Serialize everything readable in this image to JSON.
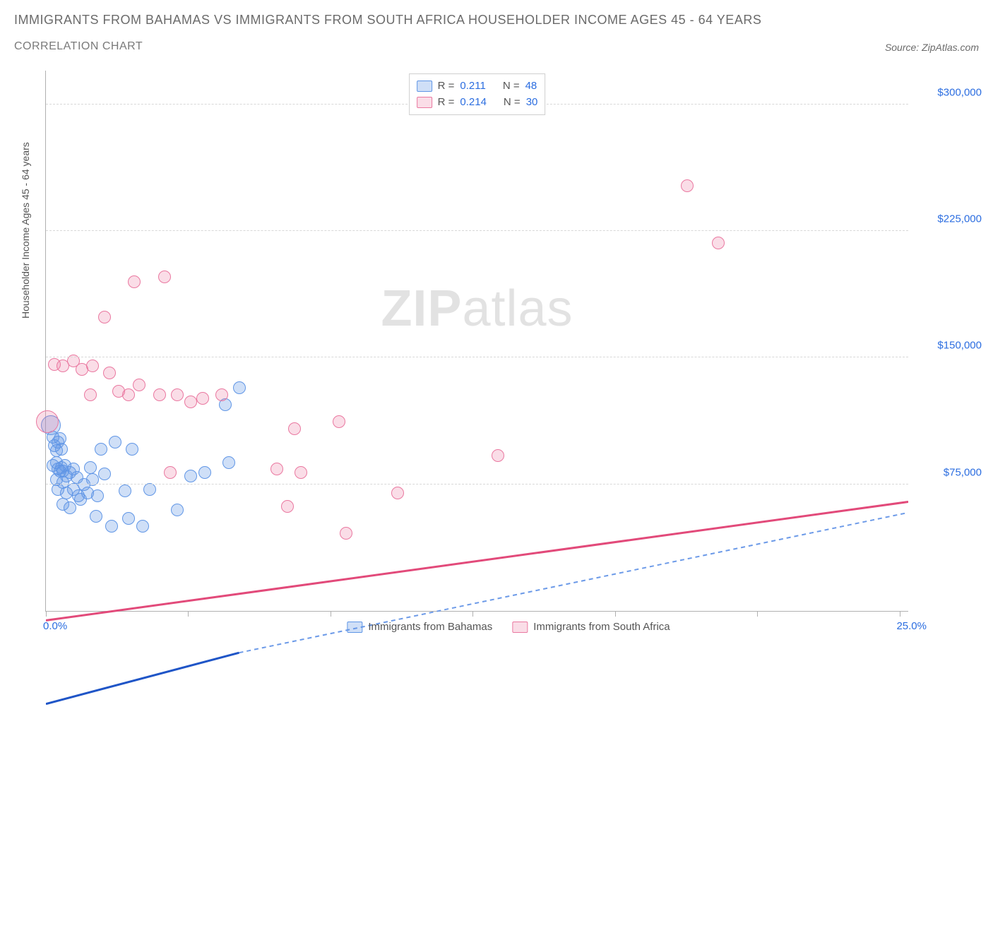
{
  "header": {
    "title": "IMMIGRANTS FROM BAHAMAS VS IMMIGRANTS FROM SOUTH AFRICA HOUSEHOLDER INCOME AGES 45 - 64 YEARS",
    "subtitle": "CORRELATION CHART",
    "source": "Source: ZipAtlas.com"
  },
  "chart": {
    "type": "scatter",
    "y_axis_title": "Householder Income Ages 45 - 64 years",
    "xlim": [
      0,
      25
    ],
    "ylim": [
      0,
      320000
    ],
    "x_tick_positions_pct": [
      0,
      16.5,
      33,
      49.5,
      66,
      82.5,
      99
    ],
    "x_label_min": "0.0%",
    "x_label_max": "25.0%",
    "y_ticks": [
      75000,
      150000,
      225000,
      300000
    ],
    "y_tick_labels": [
      "$75,000",
      "$150,000",
      "$225,000",
      "$300,000"
    ],
    "grid_color": "#d8d8d8",
    "background_color": "#ffffff",
    "axis_color": "#b0b0b0",
    "tick_label_color": "#2b6de0",
    "tick_label_fontsize": 15,
    "y_title_fontsize": 14,
    "title_color": "#6b6b6b",
    "title_fontsize": 18,
    "subtitle_fontsize": 16,
    "watermark_text_bold": "ZIP",
    "watermark_text_rest": "atlas",
    "watermark_color": "#e2e2e2",
    "watermark_fontsize": 72,
    "series": [
      {
        "name": "Immigrants from Bahamas",
        "fill_color": "rgba(96,150,230,0.30)",
        "stroke_color": "#6096e6",
        "default_radius": 9,
        "trend_color": "#1f55c7",
        "trend_dash_color": "#6c9ae8",
        "trend_width": 3,
        "trend_solid": {
          "x1": 0,
          "y1": 85000,
          "x2": 5.6,
          "y2": 104000
        },
        "trend_dashed": {
          "x1": 5.6,
          "y1": 104000,
          "x2": 25,
          "y2": 156000
        },
        "R": "0.211",
        "N": "48",
        "points": [
          {
            "x": 0.15,
            "y": 110000,
            "r": 14
          },
          {
            "x": 0.2,
            "y": 103000
          },
          {
            "x": 0.25,
            "y": 98000
          },
          {
            "x": 0.3,
            "y": 95000
          },
          {
            "x": 0.35,
            "y": 100000
          },
          {
            "x": 0.4,
            "y": 102000
          },
          {
            "x": 0.45,
            "y": 96000
          },
          {
            "x": 0.2,
            "y": 86000
          },
          {
            "x": 0.3,
            "y": 88000
          },
          {
            "x": 0.35,
            "y": 84000
          },
          {
            "x": 0.4,
            "y": 83000
          },
          {
            "x": 0.45,
            "y": 85000
          },
          {
            "x": 0.5,
            "y": 83000
          },
          {
            "x": 0.55,
            "y": 86000
          },
          {
            "x": 0.3,
            "y": 78000
          },
          {
            "x": 0.5,
            "y": 76000
          },
          {
            "x": 0.6,
            "y": 80000
          },
          {
            "x": 0.7,
            "y": 82000
          },
          {
            "x": 0.8,
            "y": 84000
          },
          {
            "x": 0.9,
            "y": 79000
          },
          {
            "x": 0.35,
            "y": 72000
          },
          {
            "x": 0.6,
            "y": 70000
          },
          {
            "x": 0.8,
            "y": 72000
          },
          {
            "x": 0.95,
            "y": 68000
          },
          {
            "x": 0.5,
            "y": 63000
          },
          {
            "x": 0.7,
            "y": 61000
          },
          {
            "x": 1.0,
            "y": 66000
          },
          {
            "x": 1.1,
            "y": 75000
          },
          {
            "x": 1.2,
            "y": 70000
          },
          {
            "x": 1.3,
            "y": 85000
          },
          {
            "x": 1.35,
            "y": 78000
          },
          {
            "x": 1.45,
            "y": 56000
          },
          {
            "x": 1.5,
            "y": 68000
          },
          {
            "x": 1.6,
            "y": 96000
          },
          {
            "x": 1.7,
            "y": 81000
          },
          {
            "x": 1.9,
            "y": 50000
          },
          {
            "x": 2.0,
            "y": 100000
          },
          {
            "x": 2.3,
            "y": 71000
          },
          {
            "x": 2.4,
            "y": 55000
          },
          {
            "x": 2.5,
            "y": 96000
          },
          {
            "x": 2.8,
            "y": 50000
          },
          {
            "x": 3.0,
            "y": 72000
          },
          {
            "x": 3.8,
            "y": 60000
          },
          {
            "x": 4.2,
            "y": 80000
          },
          {
            "x": 4.6,
            "y": 82000
          },
          {
            "x": 5.2,
            "y": 122000
          },
          {
            "x": 5.3,
            "y": 88000
          },
          {
            "x": 5.6,
            "y": 132000
          }
        ]
      },
      {
        "name": "Immigrants from South Africa",
        "fill_color": "rgba(234,120,160,0.25)",
        "stroke_color": "#ea78a0",
        "default_radius": 9,
        "trend_color": "#e24a7a",
        "trend_width": 3,
        "trend_solid": {
          "x1": 0,
          "y1": 116000,
          "x2": 25,
          "y2": 160000
        },
        "R": "0.214",
        "N": "30",
        "points": [
          {
            "x": 0.05,
            "y": 112000,
            "r": 16
          },
          {
            "x": 0.25,
            "y": 146000
          },
          {
            "x": 0.5,
            "y": 145000
          },
          {
            "x": 0.8,
            "y": 148000
          },
          {
            "x": 1.05,
            "y": 143000
          },
          {
            "x": 1.3,
            "y": 128000
          },
          {
            "x": 1.35,
            "y": 145000
          },
          {
            "x": 1.85,
            "y": 141000
          },
          {
            "x": 2.1,
            "y": 130000
          },
          {
            "x": 2.4,
            "y": 128000
          },
          {
            "x": 2.7,
            "y": 134000
          },
          {
            "x": 3.3,
            "y": 128000
          },
          {
            "x": 3.6,
            "y": 82000
          },
          {
            "x": 3.8,
            "y": 128000
          },
          {
            "x": 4.2,
            "y": 124000
          },
          {
            "x": 4.55,
            "y": 126000
          },
          {
            "x": 2.55,
            "y": 195000
          },
          {
            "x": 3.45,
            "y": 198000
          },
          {
            "x": 1.7,
            "y": 174000
          },
          {
            "x": 5.1,
            "y": 128000
          },
          {
            "x": 6.7,
            "y": 84000
          },
          {
            "x": 7.0,
            "y": 62000
          },
          {
            "x": 7.2,
            "y": 108000
          },
          {
            "x": 7.4,
            "y": 82000
          },
          {
            "x": 8.5,
            "y": 112000
          },
          {
            "x": 8.7,
            "y": 46000
          },
          {
            "x": 10.2,
            "y": 70000
          },
          {
            "x": 13.1,
            "y": 92000
          },
          {
            "x": 18.6,
            "y": 252000
          },
          {
            "x": 19.5,
            "y": 218000
          }
        ]
      }
    ],
    "legend_bottom": [
      {
        "label": "Immigrants from Bahamas",
        "fill": "rgba(96,150,230,0.30)",
        "stroke": "#6096e6"
      },
      {
        "label": "Immigrants from South Africa",
        "fill": "rgba(234,120,160,0.25)",
        "stroke": "#ea78a0"
      }
    ],
    "legend_top_labels": {
      "r": "R =",
      "n": "N ="
    }
  }
}
